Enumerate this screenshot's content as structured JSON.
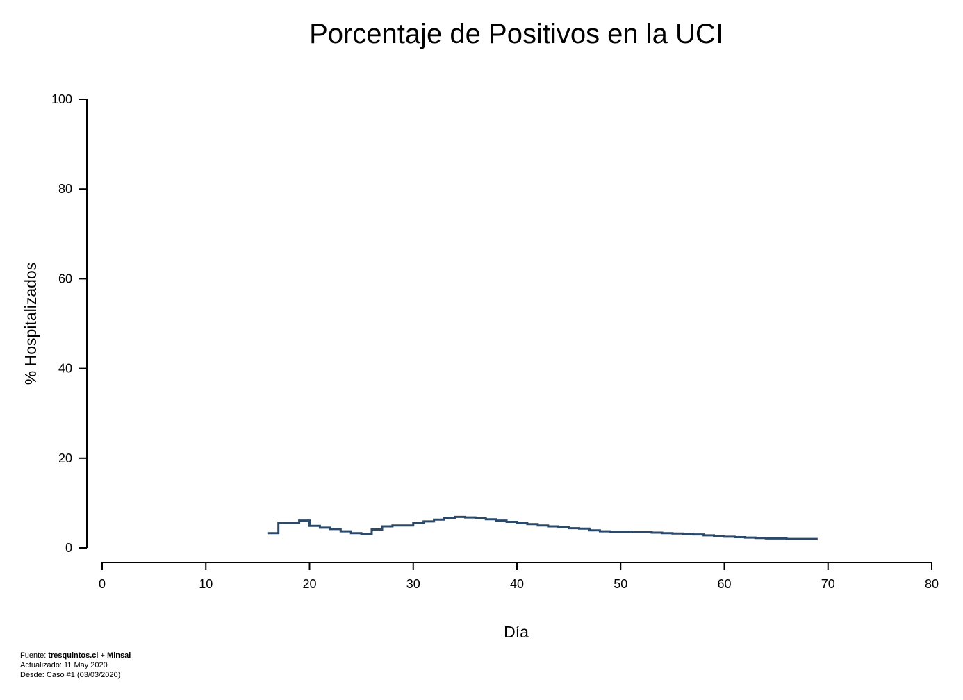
{
  "chart_data": {
    "type": "line",
    "step": true,
    "title": "Porcentaje de Positivos en la UCI",
    "xlabel": "Día",
    "ylabel": "% Hospitalizados",
    "xlim": [
      0,
      80
    ],
    "ylim": [
      0,
      100
    ],
    "xticks": [
      "0",
      "10",
      "20",
      "30",
      "40",
      "50",
      "60",
      "70",
      "80"
    ],
    "yticks": [
      "0",
      "20",
      "40",
      "60",
      "80",
      "100"
    ],
    "grid": false,
    "line_color": "#2b4a6b",
    "x": [
      16,
      17,
      18,
      19,
      20,
      21,
      22,
      23,
      24,
      25,
      26,
      27,
      28,
      29,
      30,
      31,
      32,
      33,
      34,
      35,
      36,
      37,
      38,
      39,
      40,
      41,
      42,
      43,
      44,
      45,
      46,
      47,
      48,
      49,
      50,
      51,
      52,
      53,
      54,
      55,
      56,
      57,
      58,
      59,
      60,
      61,
      62,
      63,
      64,
      65,
      66,
      67,
      68,
      69
    ],
    "values": [
      3.3,
      5.6,
      5.6,
      6.1,
      4.9,
      4.5,
      4.2,
      3.7,
      3.3,
      3.1,
      4.1,
      4.8,
      5.0,
      5.0,
      5.6,
      5.9,
      6.3,
      6.7,
      6.9,
      6.8,
      6.6,
      6.4,
      6.1,
      5.8,
      5.5,
      5.3,
      5.0,
      4.8,
      4.6,
      4.4,
      4.3,
      3.9,
      3.7,
      3.6,
      3.6,
      3.5,
      3.5,
      3.4,
      3.3,
      3.2,
      3.1,
      3.0,
      2.8,
      2.6,
      2.5,
      2.4,
      2.3,
      2.2,
      2.1,
      2.1,
      2.0,
      2.0,
      2.0,
      2.0
    ]
  },
  "footer": {
    "source_prefix": "Fuente: ",
    "source_1": "tresquintos.cl",
    "source_sep": " + ",
    "source_2": "Minsal",
    "updated": "Actualizado: 11 May 2020",
    "since": "Desde: Caso #1  (03/03/2020)"
  }
}
